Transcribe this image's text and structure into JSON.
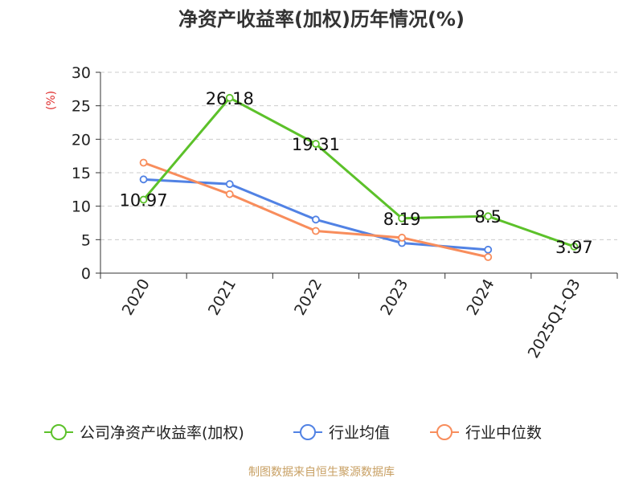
{
  "chart_data": {
    "type": "line",
    "title": "净资产收益率(加权)历年情况(%)",
    "ylabel": "(%)",
    "categories": [
      "2020",
      "2021",
      "2022",
      "2023",
      "2024",
      "2025Q1-Q3"
    ],
    "ylim": [
      0,
      30
    ],
    "yticks": [
      0,
      5,
      10,
      15,
      20,
      25,
      30
    ],
    "grid": "horizontal-dashed",
    "legend_position": "bottom",
    "series": [
      {
        "name": "公司净资产收益率(加权)",
        "color": "#5cc12a",
        "values": [
          10.97,
          26.18,
          19.31,
          8.19,
          8.5,
          3.97
        ],
        "labels": [
          "10.97",
          "26.18",
          "19.31",
          "8.19",
          "8.5",
          "3.97"
        ]
      },
      {
        "name": "行业均值",
        "color": "#5182e4",
        "values": [
          14.0,
          13.3,
          8.0,
          4.5,
          3.5,
          null
        ]
      },
      {
        "name": "行业中位数",
        "color": "#f88d5c",
        "values": [
          16.5,
          11.8,
          6.3,
          5.3,
          2.4,
          null
        ]
      }
    ],
    "source": "制图数据来自恒生聚源数据库"
  }
}
